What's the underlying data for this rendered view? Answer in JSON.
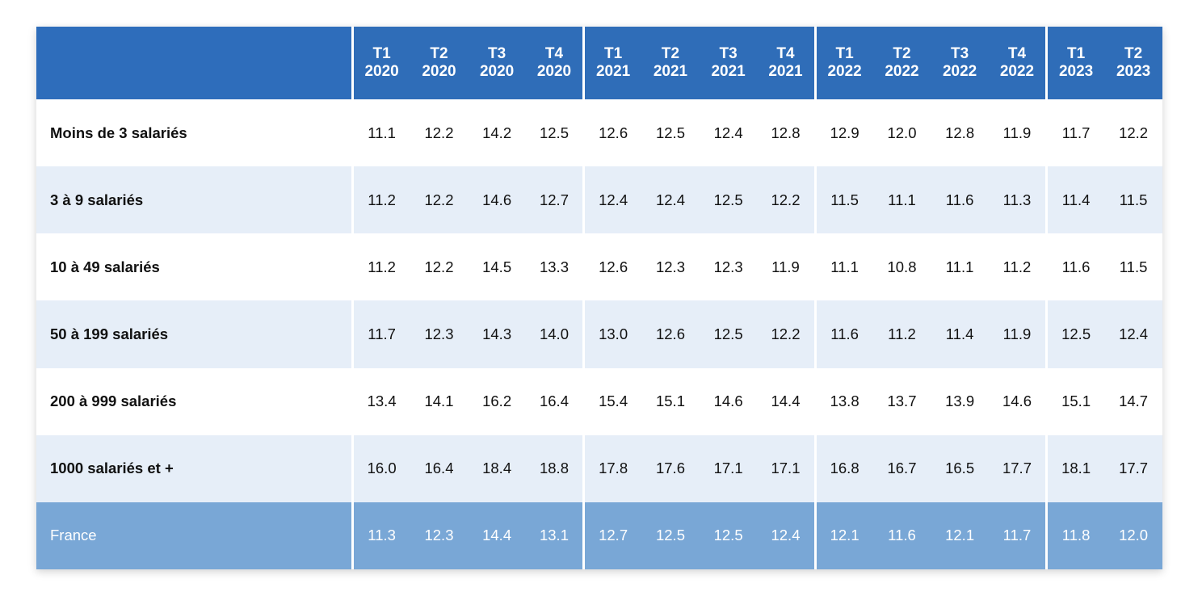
{
  "chart_data": {
    "type": "table",
    "columns": [
      {
        "q": "T1",
        "y": "2020"
      },
      {
        "q": "T2",
        "y": "2020"
      },
      {
        "q": "T3",
        "y": "2020"
      },
      {
        "q": "T4",
        "y": "2020"
      },
      {
        "q": "T1",
        "y": "2021"
      },
      {
        "q": "T2",
        "y": "2021"
      },
      {
        "q": "T3",
        "y": "2021"
      },
      {
        "q": "T4",
        "y": "2021"
      },
      {
        "q": "T1",
        "y": "2022"
      },
      {
        "q": "T2",
        "y": "2022"
      },
      {
        "q": "T3",
        "y": "2022"
      },
      {
        "q": "T4",
        "y": "2022"
      },
      {
        "q": "T1",
        "y": "2023"
      },
      {
        "q": "T2",
        "y": "2023"
      }
    ],
    "rows": [
      {
        "label": "Moins de 3 salariés",
        "values": [
          "11.1",
          "12.2",
          "14.2",
          "12.5",
          "12.6",
          "12.5",
          "12.4",
          "12.8",
          "12.9",
          "12.0",
          "12.8",
          "11.9",
          "11.7",
          "12.2"
        ]
      },
      {
        "label": "3 à 9 salariés",
        "values": [
          "11.2",
          "12.2",
          "14.6",
          "12.7",
          "12.4",
          "12.4",
          "12.5",
          "12.2",
          "11.5",
          "11.1",
          "11.6",
          "11.3",
          "11.4",
          "11.5"
        ]
      },
      {
        "label": "10 à 49 salariés",
        "values": [
          "11.2",
          "12.2",
          "14.5",
          "13.3",
          "12.6",
          "12.3",
          "12.3",
          "11.9",
          "11.1",
          "10.8",
          "11.1",
          "11.2",
          "11.6",
          "11.5"
        ]
      },
      {
        "label": "50 à 199 salariés",
        "values": [
          "11.7",
          "12.3",
          "14.3",
          "14.0",
          "13.0",
          "12.6",
          "12.5",
          "12.2",
          "11.6",
          "11.2",
          "11.4",
          "11.9",
          "12.5",
          "12.4"
        ]
      },
      {
        "label": "200 à 999 salariés",
        "values": [
          "13.4",
          "14.1",
          "16.2",
          "16.4",
          "15.4",
          "15.1",
          "14.6",
          "14.4",
          "13.8",
          "13.7",
          "13.9",
          "14.6",
          "15.1",
          "14.7"
        ]
      },
      {
        "label": "1000 salariés et +",
        "values": [
          "16.0",
          "16.4",
          "18.4",
          "18.8",
          "17.8",
          "17.6",
          "17.1",
          "17.1",
          "16.8",
          "16.7",
          "16.5",
          "17.7",
          "18.1",
          "17.7"
        ]
      }
    ],
    "total": {
      "label": "France",
      "values": [
        "11.3",
        "12.3",
        "14.4",
        "13.1",
        "12.7",
        "12.5",
        "12.5",
        "12.4",
        "12.1",
        "11.6",
        "12.1",
        "11.7",
        "11.8",
        "12.0"
      ]
    },
    "colors": {
      "header": "#2f6db8",
      "row_alt": "#e6eef8",
      "total_row": "#79a7d6"
    }
  }
}
